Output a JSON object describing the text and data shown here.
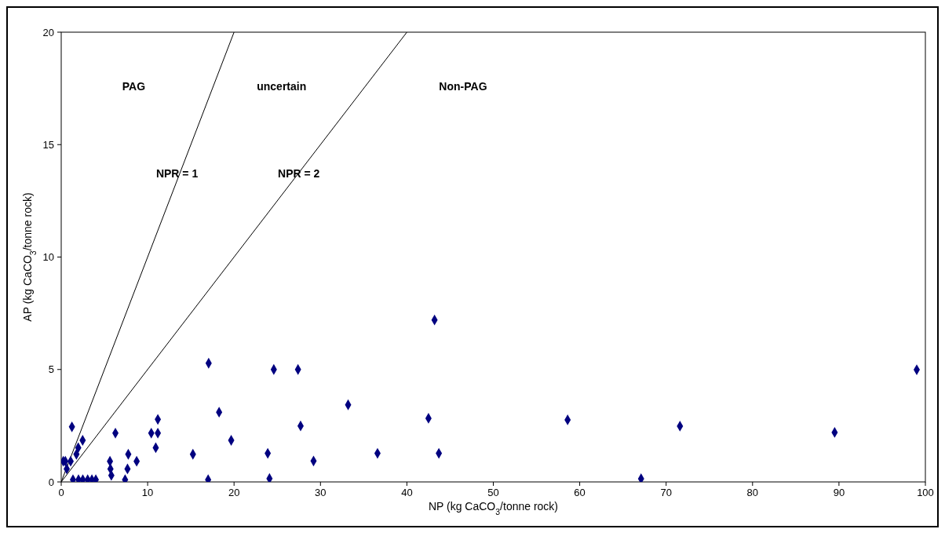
{
  "chart_data": {
    "type": "scatter",
    "xlabel": "NP (kg CaCO$_{3}$/tonne rock)",
    "ylabel": "AP (kg CaCO$_{3}$/tonne rock)",
    "xlim": [
      0,
      100
    ],
    "xticks": [
      0,
      10,
      20,
      30,
      40,
      50,
      60,
      70,
      80,
      90,
      100
    ],
    "ylim": [
      0,
      20
    ],
    "yticks": [
      0,
      5,
      10,
      15,
      20
    ],
    "grid": false,
    "series": [
      {
        "marker": "diamond",
        "color": "#000080",
        "x": [
          0.24,
          0.48,
          1.09,
          0.64,
          1.24,
          1.76,
          1.97,
          2.48,
          1.36,
          2.0,
          2.5,
          3.06,
          3.55,
          4.0,
          5.64,
          5.7,
          5.8,
          6.27,
          7.39,
          7.67,
          7.76,
          8.73,
          10.42,
          11.18,
          11.18,
          10.94,
          15.24,
          17.06,
          17.0,
          18.27,
          19.67,
          24.6,
          27.4,
          27.7,
          23.9,
          24.1,
          29.2,
          33.2,
          36.6,
          42.5,
          43.2,
          43.7,
          58.6,
          71.6,
          89.5,
          99.0,
          67.1
        ],
        "values": [
          0.92,
          0.92,
          0.92,
          0.58,
          2.45,
          1.23,
          1.52,
          1.85,
          0.1,
          0.1,
          0.1,
          0.1,
          0.1,
          0.1,
          0.92,
          0.58,
          0.29,
          2.17,
          0.1,
          0.58,
          1.23,
          0.92,
          2.17,
          2.17,
          2.78,
          1.52,
          1.23,
          5.28,
          0.1,
          3.1,
          1.85,
          5.0,
          5.0,
          2.49,
          1.27,
          0.15,
          0.93,
          3.43,
          1.27,
          2.83,
          7.2,
          1.27,
          2.76,
          2.48,
          2.2,
          4.99,
          0.14
        ]
      },
      {
        "type": "line",
        "marker": "none",
        "color": "#000000",
        "x": [
          0,
          20
        ],
        "values": [
          0,
          20
        ]
      },
      {
        "type": "line",
        "marker": "none",
        "color": "#000000",
        "x": [
          0,
          40
        ],
        "values": [
          0,
          20
        ]
      }
    ],
    "annotations": [
      {
        "text": "NPR = 1",
        "x": 13.4,
        "y": 13.7
      },
      {
        "text": "NPR = 2",
        "x": 27.5,
        "y": 13.7
      },
      "PAG",
      "uncertain",
      "Non-PAG"
    ]
  }
}
